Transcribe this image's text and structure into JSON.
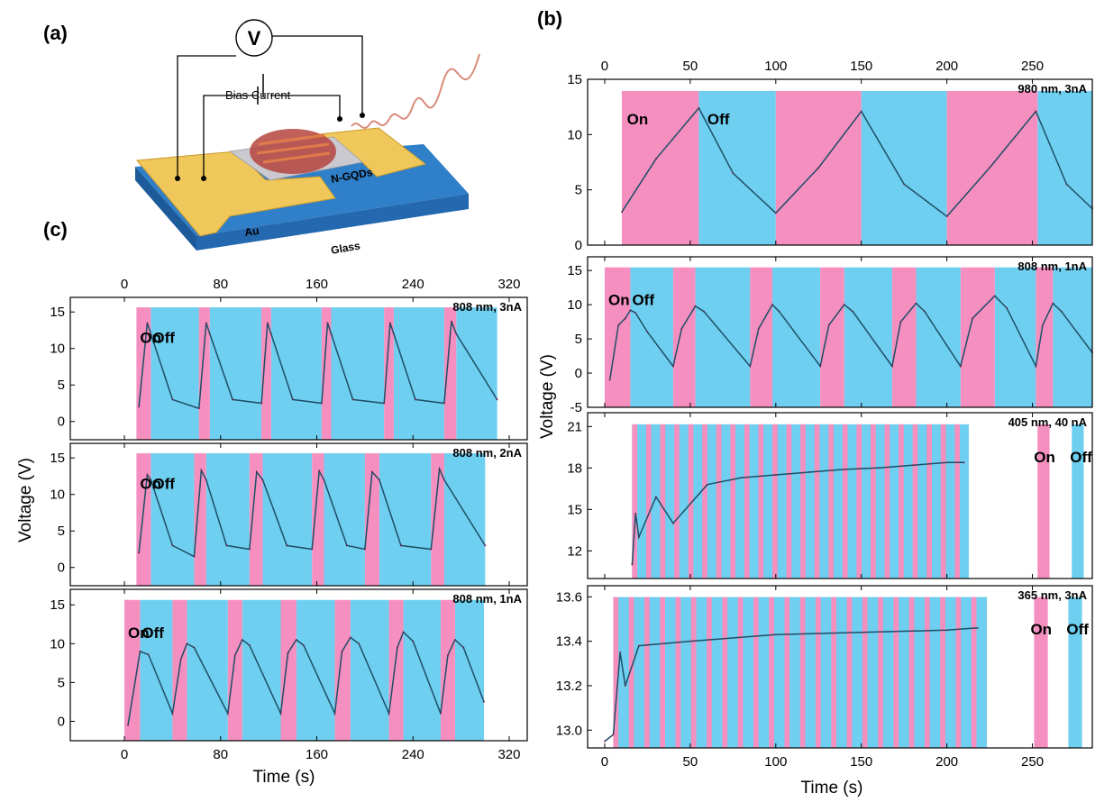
{
  "figure": {
    "panel_labels": {
      "a": "(a)",
      "b": "(b)",
      "c": "(c)"
    },
    "schematic": {
      "voltmeter": "V",
      "bias_label": "Bias Current",
      "electrode_label": "Au",
      "active_label": "N-GQDs",
      "substrate_label": "Glass"
    },
    "on_label": "On",
    "off_label": "Off",
    "colors": {
      "on": "#f48fbf",
      "off": "#6ecff0",
      "trace_on": "#7a1a46",
      "trace_off": "#1f4e66"
    }
  },
  "chart_data": [
    {
      "id": "b1",
      "type": "line",
      "title": "980 nm, 3nA",
      "xlim": [
        -10,
        285
      ],
      "ylim": [
        0,
        15
      ],
      "x_ticks": [
        "0",
        "50",
        "100",
        "150",
        "200",
        "250"
      ],
      "y_ticks": [
        "0",
        "5",
        "10",
        "15"
      ],
      "on_intervals": [
        [
          10,
          55
        ],
        [
          100,
          150
        ],
        [
          200,
          253
        ]
      ],
      "off_intervals": [
        [
          55,
          100
        ],
        [
          150,
          200
        ],
        [
          253,
          285
        ]
      ],
      "series": [
        {
          "x": [
            10,
            30,
            55,
            75,
            100,
            125,
            150,
            175,
            200,
            225,
            252,
            270,
            285
          ],
          "y": [
            3,
            7.8,
            12.4,
            6.5,
            2.9,
            7,
            12.1,
            5.5,
            2.6,
            7,
            12.1,
            5.5,
            3.3
          ]
        }
      ],
      "ylabel": "Voltage (V)"
    },
    {
      "id": "b2",
      "type": "line",
      "title": "808 nm, 1nA",
      "xlim": [
        -10,
        285
      ],
      "ylim": [
        -5,
        17
      ],
      "x_ticks": [
        "0",
        "50",
        "100",
        "150",
        "200",
        "250"
      ],
      "y_ticks": [
        "-5",
        "0",
        "5",
        "10",
        "15"
      ],
      "on_intervals": [
        [
          0,
          15
        ],
        [
          40,
          53
        ],
        [
          85,
          98
        ],
        [
          126,
          140
        ],
        [
          168,
          182
        ],
        [
          208,
          228
        ],
        [
          252,
          262
        ]
      ],
      "off_intervals": [
        [
          15,
          40
        ],
        [
          53,
          85
        ],
        [
          98,
          126
        ],
        [
          140,
          168
        ],
        [
          182,
          208
        ],
        [
          228,
          252
        ],
        [
          262,
          285
        ]
      ],
      "series": [
        {
          "x": [
            3,
            8,
            12,
            15,
            18,
            25,
            40,
            45,
            53,
            58,
            85,
            90,
            98,
            102,
            126,
            131,
            140,
            145,
            168,
            173,
            182,
            187,
            208,
            215,
            228,
            235,
            252,
            256,
            262,
            267,
            285
          ],
          "y": [
            -1,
            7,
            8,
            9.2,
            8.8,
            6,
            1,
            6.5,
            9.8,
            9,
            1,
            6.5,
            10,
            9,
            1,
            7,
            10,
            9,
            1,
            7.5,
            10.2,
            9,
            1,
            8,
            11.3,
            9.5,
            1,
            7,
            10.2,
            9,
            3
          ]
        }
      ],
      "ylabel": "Voltage (V)"
    },
    {
      "id": "b3",
      "type": "line",
      "title": "405 nm, 40 nA",
      "xlim": [
        -10,
        285
      ],
      "ylim": [
        10,
        22
      ],
      "x_ticks": [
        "0",
        "50",
        "100",
        "150",
        "200",
        "250"
      ],
      "y_ticks": [
        "12",
        "15",
        "18",
        "21"
      ],
      "on_period_start": 16,
      "on_period": 8.2,
      "on_width": 3,
      "on_count": 24,
      "series": [
        {
          "x": [
            16,
            18,
            20,
            30,
            40,
            60,
            80,
            100,
            120,
            140,
            160,
            180,
            200,
            210
          ],
          "y": [
            11,
            14.7,
            13,
            15.9,
            14,
            16.8,
            17.3,
            17.5,
            17.7,
            17.9,
            18,
            18.2,
            18.4,
            18.4
          ]
        }
      ],
      "legend": {
        "on_x": [
          253,
          260
        ],
        "off_x": [
          273,
          280
        ]
      },
      "ylabel": "Voltage (V)"
    },
    {
      "id": "b4",
      "type": "line",
      "title": "365 nm, 3nA",
      "xlim": [
        -10,
        285
      ],
      "ylim": [
        12.92,
        13.65
      ],
      "x_ticks": [
        "0",
        "50",
        "100",
        "150",
        "200",
        "250"
      ],
      "y_ticks": [
        "13.0",
        "13.2",
        "13.4",
        "13.6"
      ],
      "on_period_start": 5,
      "on_period": 9.1,
      "on_width": 3,
      "on_count": 24,
      "series": [
        {
          "x": [
            0,
            5,
            9,
            12,
            20,
            50,
            100,
            150,
            200,
            218
          ],
          "y": [
            12.95,
            12.98,
            13.35,
            13.2,
            13.38,
            13.4,
            13.43,
            13.44,
            13.45,
            13.46
          ]
        }
      ],
      "legend": {
        "on_x": [
          251,
          259
        ],
        "off_x": [
          271,
          279
        ]
      },
      "xlabel": "Time (s)",
      "ylabel": "Voltage (V)"
    },
    {
      "id": "c1",
      "type": "line",
      "title": "808 nm, 3nA",
      "xlim": [
        -45,
        335
      ],
      "ylim": [
        -2.5,
        17
      ],
      "x_ticks": [
        "0",
        "80",
        "160",
        "240",
        "320"
      ],
      "y_ticks": [
        "0",
        "5",
        "10",
        "15"
      ],
      "on_intervals": [
        [
          10,
          22
        ],
        [
          62,
          71
        ],
        [
          114,
          122
        ],
        [
          164,
          172
        ],
        [
          216,
          224
        ],
        [
          266,
          276
        ]
      ],
      "off_intervals": [
        [
          22,
          62
        ],
        [
          71,
          114
        ],
        [
          122,
          164
        ],
        [
          172,
          216
        ],
        [
          224,
          266
        ],
        [
          276,
          310
        ]
      ],
      "series": [
        {
          "x": [
            12,
            19,
            22,
            40,
            62,
            68,
            71,
            90,
            114,
            119,
            122,
            140,
            164,
            169,
            172,
            190,
            216,
            221,
            224,
            242,
            266,
            272,
            276,
            310
          ],
          "y": [
            2,
            13.5,
            12,
            3,
            1.8,
            13.5,
            12,
            3,
            2.5,
            13.5,
            12,
            3,
            2.5,
            13.5,
            12,
            3,
            2.5,
            13.5,
            12,
            3,
            2.5,
            13.7,
            12,
            3
          ]
        }
      ],
      "ylabel": "Voltage (V)"
    },
    {
      "id": "c2",
      "type": "line",
      "title": "808 nm, 2nA",
      "xlim": [
        -45,
        335
      ],
      "ylim": [
        -2.5,
        17
      ],
      "x_ticks": [
        "0",
        "80",
        "160",
        "240",
        "320"
      ],
      "y_ticks": [
        "0",
        "5",
        "10",
        "15"
      ],
      "on_intervals": [
        [
          10,
          22
        ],
        [
          58,
          68
        ],
        [
          104,
          115
        ],
        [
          156,
          166
        ],
        [
          200,
          212
        ],
        [
          255,
          266
        ]
      ],
      "off_intervals": [
        [
          22,
          58
        ],
        [
          68,
          104
        ],
        [
          115,
          156
        ],
        [
          166,
          200
        ],
        [
          212,
          255
        ],
        [
          266,
          300
        ]
      ],
      "series": [
        {
          "x": [
            12,
            19,
            22,
            40,
            58,
            64,
            68,
            85,
            104,
            110,
            115,
            135,
            156,
            162,
            166,
            185,
            200,
            206,
            212,
            230,
            255,
            262,
            266,
            300
          ],
          "y": [
            2,
            12.7,
            12,
            3,
            1.5,
            13.3,
            12,
            3,
            2.5,
            13.1,
            12,
            3,
            2.5,
            13.2,
            12,
            3,
            2.5,
            13.1,
            12,
            3,
            2.5,
            13.5,
            12,
            3
          ]
        }
      ],
      "ylabel": "Voltage (V)"
    },
    {
      "id": "c3",
      "type": "line",
      "title": "808 nm, 1nA",
      "xlim": [
        -45,
        335
      ],
      "ylim": [
        -2.5,
        17
      ],
      "x_ticks": [
        "0",
        "80",
        "160",
        "240",
        "320"
      ],
      "y_ticks": [
        "0",
        "5",
        "10",
        "15"
      ],
      "on_intervals": [
        [
          0,
          13
        ],
        [
          40,
          52
        ],
        [
          86,
          98
        ],
        [
          130,
          143
        ],
        [
          175,
          188
        ],
        [
          220,
          232
        ],
        [
          263,
          275
        ]
      ],
      "off_intervals": [
        [
          13,
          40
        ],
        [
          52,
          86
        ],
        [
          98,
          130
        ],
        [
          143,
          175
        ],
        [
          188,
          220
        ],
        [
          232,
          263
        ],
        [
          275,
          299
        ]
      ],
      "series": [
        {
          "x": [
            3,
            13,
            20,
            40,
            47,
            52,
            58,
            86,
            92,
            98,
            104,
            130,
            136,
            143,
            149,
            175,
            181,
            188,
            195,
            220,
            227,
            232,
            240,
            263,
            269,
            275,
            282,
            299
          ],
          "y": [
            -0.5,
            9,
            8.6,
            1,
            8,
            10,
            9.5,
            1,
            8.5,
            10.5,
            9.8,
            1,
            8.8,
            10.5,
            9.8,
            1,
            9,
            10.8,
            10,
            1,
            9.5,
            11.5,
            10.3,
            1,
            8.5,
            10.5,
            9.5,
            2.5
          ]
        }
      ],
      "xlabel": "Time (s)",
      "ylabel": "Voltage (V)"
    }
  ]
}
